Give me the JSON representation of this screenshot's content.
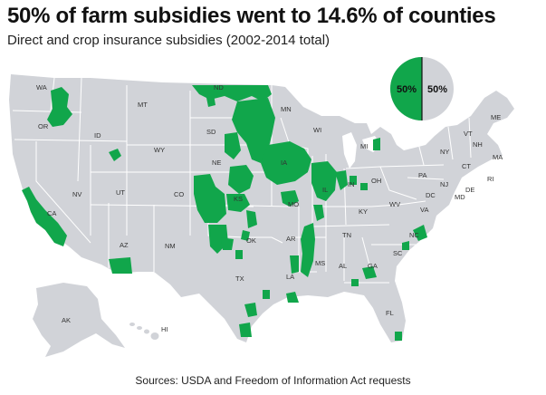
{
  "title": "50% of farm subsidies went to 14.6% of counties",
  "subtitle": "Direct and crop insurance subsidies (2002-2014 total)",
  "sources": "Sources: USDA and Freedom of Information Act requests",
  "colors": {
    "land": "#d1d3d8",
    "highlight": "#11a64b",
    "border": "#ffffff",
    "text": "#333333"
  },
  "pie": {
    "left_label": "50%",
    "right_label": "50%",
    "highlighted_share": 0.5
  },
  "state_labels": {
    "WA": "WA",
    "OR": "OR",
    "CA": "CA",
    "NV": "NV",
    "ID": "ID",
    "MT": "MT",
    "WY": "WY",
    "UT": "UT",
    "AZ": "AZ",
    "CO": "CO",
    "NM": "NM",
    "ND": "ND",
    "SD": "SD",
    "NE": "NE",
    "KS": "KS",
    "OK": "OK",
    "TX": "TX",
    "MN": "MN",
    "IA": "IA",
    "MO": "MO",
    "AR": "AR",
    "LA": "LA",
    "WI": "WI",
    "IL": "IL",
    "MI": "MI",
    "IN": "IN",
    "OH": "OH",
    "KY": "KY",
    "TN": "TN",
    "MS": "MS",
    "AL": "AL",
    "GA": "GA",
    "FL": "FL",
    "SC": "SC",
    "NC": "NC",
    "VA": "VA",
    "WV": "WV",
    "PA": "PA",
    "NY": "NY",
    "VT": "VT",
    "NH": "NH",
    "ME": "ME",
    "MA": "MA",
    "CT": "CT",
    "RI": "RI",
    "NJ": "NJ",
    "DE": "DE",
    "MD": "MD",
    "DC": "DC",
    "AK": "AK",
    "HI": "HI"
  }
}
